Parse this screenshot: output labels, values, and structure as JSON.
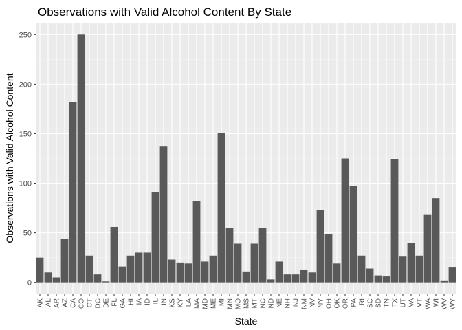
{
  "colors": {
    "panel_background": "#ebebeb",
    "grid_major": "#ffffff",
    "grid_minor": "#f4f4f4",
    "bar_fill": "#595959",
    "tick_text": "#4d4d4d",
    "axis_ticks": "#333333"
  },
  "chart_data": {
    "type": "bar",
    "title": "Observations with Valid Alcohol Content By State",
    "xlabel": "State",
    "ylabel": "Observations with Valid Alcohol Content",
    "ylim": [
      -12,
      262
    ],
    "yticks": [
      0,
      50,
      100,
      150,
      200,
      250
    ],
    "grid": true,
    "categories": [
      "AK",
      "AL",
      "AR",
      "AZ",
      "CA",
      "CO",
      "CT",
      "DC",
      "DE",
      "FL",
      "GA",
      "HI",
      "IA",
      "ID",
      "IL",
      "IN",
      "KS",
      "KY",
      "LA",
      "MA",
      "MD",
      "ME",
      "MI",
      "MN",
      "MO",
      "MS",
      "MT",
      "NC",
      "ND",
      "NE",
      "NH",
      "NJ",
      "NM",
      "NV",
      "NY",
      "OH",
      "OK",
      "OR",
      "PA",
      "RI",
      "SC",
      "SD",
      "TN",
      "TX",
      "UT",
      "VA",
      "VT",
      "WA",
      "WI",
      "WV",
      "WY"
    ],
    "values": [
      25,
      10,
      5,
      44,
      182,
      250,
      27,
      8,
      1,
      56,
      16,
      27,
      30,
      30,
      91,
      137,
      23,
      20,
      19,
      82,
      21,
      27,
      151,
      55,
      39,
      11,
      39,
      55,
      3,
      21,
      8,
      8,
      13,
      10,
      73,
      49,
      19,
      125,
      97,
      27,
      14,
      7,
      6,
      124,
      26,
      40,
      27,
      68,
      85,
      2,
      15
    ]
  }
}
